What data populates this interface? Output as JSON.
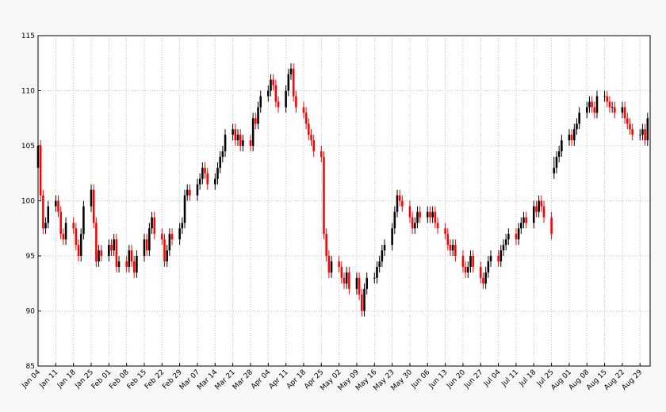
{
  "chart_data": {
    "type": "candlestick",
    "colorup": "#000000",
    "colordown": "#ff0000",
    "grid": true,
    "xlim": [
      0,
      242
    ],
    "ylim": [
      85,
      115
    ],
    "yticks": [
      85,
      90,
      95,
      100,
      105,
      110,
      115
    ],
    "xticks": [
      {
        "value": 0,
        "label": "Jan 04"
      },
      {
        "value": 7,
        "label": "Jan 11"
      },
      {
        "value": 14,
        "label": "Jan 18"
      },
      {
        "value": 21,
        "label": "Jan 25"
      },
      {
        "value": 28,
        "label": "Feb 01"
      },
      {
        "value": 35,
        "label": "Feb 08"
      },
      {
        "value": 42,
        "label": "Feb 15"
      },
      {
        "value": 49,
        "label": "Feb 22"
      },
      {
        "value": 56,
        "label": "Feb 29"
      },
      {
        "value": 63,
        "label": "Mar 07"
      },
      {
        "value": 70,
        "label": "Mar 14"
      },
      {
        "value": 77,
        "label": "Mar 21"
      },
      {
        "value": 84,
        "label": "Mar 28"
      },
      {
        "value": 91,
        "label": "Apr 04"
      },
      {
        "value": 98,
        "label": "Apr 11"
      },
      {
        "value": 105,
        "label": "Apr 18"
      },
      {
        "value": 112,
        "label": "Apr 25"
      },
      {
        "value": 119,
        "label": "May 02"
      },
      {
        "value": 126,
        "label": "May 09"
      },
      {
        "value": 133,
        "label": "May 16"
      },
      {
        "value": 140,
        "label": "May 23"
      },
      {
        "value": 147,
        "label": "May 30"
      },
      {
        "value": 154,
        "label": "Jun 06"
      },
      {
        "value": 161,
        "label": "Jun 13"
      },
      {
        "value": 168,
        "label": "Jun 20"
      },
      {
        "value": 175,
        "label": "Jun 27"
      },
      {
        "value": 182,
        "label": "Jul 04"
      },
      {
        "value": 189,
        "label": "Jul 11"
      },
      {
        "value": 196,
        "label": "Jul 18"
      },
      {
        "value": 203,
        "label": "Jul 25"
      },
      {
        "value": 210,
        "label": "Aug 01"
      },
      {
        "value": 217,
        "label": "Aug 08"
      },
      {
        "value": 224,
        "label": "Aug 15"
      },
      {
        "value": 231,
        "label": "Aug 22"
      },
      {
        "value": 238,
        "label": "Aug 29"
      }
    ],
    "x": [
      0,
      1,
      2,
      3,
      4,
      7,
      8,
      9,
      10,
      11,
      14,
      15,
      16,
      17,
      18,
      21,
      22,
      23,
      24,
      25,
      28,
      29,
      30,
      31,
      32,
      35,
      36,
      37,
      38,
      39,
      42,
      43,
      44,
      45,
      46,
      49,
      50,
      51,
      52,
      53,
      56,
      57,
      58,
      59,
      60,
      63,
      64,
      65,
      66,
      67,
      70,
      71,
      72,
      73,
      74,
      77,
      78,
      79,
      80,
      81,
      84,
      85,
      86,
      87,
      88,
      91,
      92,
      93,
      94,
      95,
      98,
      99,
      100,
      101,
      102,
      105,
      106,
      107,
      108,
      109,
      112,
      113,
      114,
      115,
      116,
      119,
      120,
      121,
      122,
      123,
      126,
      127,
      128,
      129,
      130,
      133,
      134,
      135,
      136,
      137,
      140,
      141,
      142,
      143,
      144,
      147,
      148,
      149,
      150,
      151,
      154,
      155,
      156,
      157,
      158,
      161,
      162,
      163,
      164,
      165,
      168,
      169,
      170,
      171,
      172,
      175,
      176,
      177,
      178,
      179,
      182,
      183,
      184,
      185,
      186,
      189,
      190,
      191,
      192,
      193,
      196,
      197,
      198,
      199,
      200,
      203,
      204,
      205,
      206,
      207,
      210,
      211,
      212,
      213,
      214,
      217,
      218,
      219,
      220,
      221,
      224,
      225,
      226,
      227,
      228,
      231,
      232,
      233,
      234,
      235,
      238,
      239,
      240,
      241
    ],
    "open": [
      103,
      105,
      100.5,
      97.5,
      98,
      99.5,
      100,
      99,
      97,
      96.5,
      98,
      97.5,
      96,
      95,
      97,
      99.5,
      101,
      98,
      94.5,
      95.5,
      95,
      96,
      95.5,
      96.5,
      94,
      94.5,
      94,
      95.5,
      94.5,
      93.5,
      95,
      96.5,
      95.5,
      97.5,
      98.5,
      97,
      96.5,
      94.5,
      95.5,
      97,
      96.5,
      97.5,
      98,
      100.5,
      101,
      100.5,
      101.5,
      102,
      103,
      102.5,
      101.5,
      102,
      103,
      104,
      104.5,
      106,
      106.5,
      105.5,
      106,
      105,
      105.5,
      105,
      107.5,
      107,
      108.5,
      109.5,
      110,
      111,
      110.5,
      109,
      108.5,
      110,
      111.5,
      112,
      109.5,
      108.5,
      108,
      107,
      106,
      105.5,
      104.5,
      104,
      97,
      95,
      93.5,
      94.5,
      94,
      93,
      92.5,
      93.5,
      92,
      93,
      91.5,
      90,
      92,
      93,
      93,
      94,
      94.5,
      95.5,
      96,
      97.5,
      99,
      100.5,
      100,
      99.5,
      98.5,
      97.5,
      98,
      99,
      98.5,
      99,
      98.5,
      99,
      98,
      97.5,
      97,
      96,
      95.5,
      96,
      95,
      94,
      93.5,
      94,
      95,
      94,
      93,
      92.5,
      93.5,
      94.5,
      95,
      94.5,
      95.5,
      96,
      96.5,
      97,
      96.5,
      97.5,
      98,
      98.5,
      98,
      99.5,
      99,
      100,
      99.5,
      98.5,
      102.5,
      103,
      104,
      104.5,
      105.5,
      106,
      105.5,
      106.5,
      107,
      108,
      108.5,
      109,
      108.5,
      108,
      109.5,
      109.5,
      109,
      108.5,
      108.5,
      108,
      108.5,
      107.5,
      107,
      106.5,
      106,
      106,
      106.5,
      105.5
    ],
    "high": [
      105.5,
      105.5,
      101,
      98.5,
      100,
      100.5,
      100.5,
      99.5,
      97.5,
      98.5,
      98.5,
      98,
      96.5,
      97.5,
      100,
      101.5,
      101.5,
      98.5,
      96,
      96,
      96.5,
      96.5,
      97,
      97,
      95,
      95,
      96,
      96,
      95,
      95.5,
      97,
      97,
      98,
      99,
      99,
      97.5,
      97,
      96,
      97.5,
      97.5,
      98,
      98.5,
      101,
      101.5,
      101.5,
      102,
      102.5,
      103.5,
      103.5,
      103,
      102.5,
      103.5,
      104.5,
      105,
      106.5,
      107,
      107,
      106.5,
      106.5,
      106,
      106,
      108,
      108,
      109,
      110,
      110.5,
      111.5,
      111.5,
      111,
      109.5,
      110.5,
      112,
      112.5,
      112.5,
      110,
      109,
      108.5,
      107.5,
      106.5,
      106,
      105,
      104.5,
      97.5,
      95.5,
      95,
      95,
      94.5,
      93.5,
      94,
      94,
      93.5,
      93.5,
      92,
      92.5,
      93.5,
      93.5,
      94.5,
      95,
      96,
      96.5,
      98,
      99.5,
      101,
      101,
      100.5,
      100,
      99,
      98.5,
      99.5,
      99.5,
      99.5,
      99.5,
      99.5,
      99.5,
      98.5,
      98,
      97.5,
      96.5,
      96.5,
      96.5,
      95.5,
      94.5,
      94.5,
      95.5,
      95.5,
      94.5,
      93.5,
      94,
      95,
      95.5,
      95.5,
      96,
      96.5,
      97,
      97.5,
      97.5,
      98,
      98.5,
      99,
      99,
      100,
      100,
      100.5,
      100.5,
      100,
      99,
      104,
      104.5,
      105,
      106,
      106.5,
      106.5,
      107,
      107.5,
      108.5,
      109,
      109.5,
      109.5,
      109,
      110,
      110,
      110,
      109.5,
      109,
      109,
      109,
      109,
      108,
      107.5,
      107,
      106.5,
      107,
      107,
      108
    ],
    "low": [
      102.5,
      100,
      97,
      97,
      97.5,
      99,
      98.5,
      96.5,
      96,
      96,
      97,
      95.5,
      94.5,
      94.5,
      96.5,
      99,
      97.5,
      94,
      94,
      94.5,
      94.5,
      95,
      95,
      93.5,
      93.5,
      93.5,
      93.5,
      94,
      93,
      93,
      94.5,
      95,
      95,
      97,
      96.5,
      96,
      94,
      94,
      95,
      96,
      96,
      97,
      97.5,
      100,
      100,
      100,
      101,
      101.5,
      102,
      101,
      101,
      101.5,
      102.5,
      103.5,
      104,
      105.5,
      105,
      105,
      104.5,
      104.5,
      104.5,
      104.5,
      106.5,
      106.5,
      108,
      109,
      109.5,
      110,
      108.5,
      108,
      108,
      109.5,
      111,
      109,
      108,
      107.5,
      106.5,
      105.5,
      105,
      104,
      103.5,
      96.5,
      94.5,
      93,
      93,
      93.5,
      92.5,
      92,
      92,
      91.5,
      91.5,
      91,
      89.5,
      89.5,
      91.5,
      92.5,
      92.5,
      93.5,
      94,
      95,
      95.5,
      97,
      98.5,
      99.5,
      99,
      98,
      97,
      97,
      97.5,
      98,
      98,
      98,
      98,
      97.5,
      97,
      96.5,
      95.5,
      95,
      95,
      94.5,
      93.5,
      93,
      93,
      93.5,
      93.5,
      92.5,
      92,
      92,
      93,
      94,
      94,
      94,
      95,
      95.5,
      96,
      96,
      96,
      97,
      97.5,
      97.5,
      97.5,
      98.5,
      98.5,
      99,
      98,
      96.5,
      102,
      102.5,
      103.5,
      104,
      105,
      105,
      105,
      106,
      106.5,
      107.5,
      108,
      108,
      107.5,
      107.5,
      109,
      108.5,
      108,
      108,
      107.5,
      107.5,
      107,
      106.5,
      106,
      105.5,
      105.5,
      105.5,
      105,
      105
    ],
    "close": [
      105,
      100.5,
      97.5,
      98,
      99.5,
      100,
      99,
      97,
      96.5,
      98,
      97.5,
      96,
      95,
      97,
      99.5,
      101,
      98,
      94.5,
      95.5,
      95,
      96,
      95.5,
      96.5,
      94,
      94.5,
      94,
      95.5,
      94.5,
      93.5,
      95,
      96.5,
      95.5,
      97.5,
      98.5,
      97,
      96.5,
      94.5,
      95.5,
      97,
      96.5,
      97.5,
      98,
      100.5,
      101,
      100.5,
      101.5,
      102,
      103,
      102.5,
      101.5,
      102,
      103,
      104,
      104.5,
      106,
      106.5,
      105.5,
      106,
      105,
      105.5,
      105,
      107.5,
      107,
      108.5,
      109.5,
      110,
      111,
      110.5,
      109,
      108.5,
      110,
      111.5,
      112,
      109.5,
      108.5,
      108,
      107,
      106,
      105.5,
      104.5,
      104,
      97,
      95,
      93.5,
      94.5,
      94,
      93,
      92.5,
      93.5,
      92,
      93,
      91.5,
      90,
      92,
      93,
      93,
      94,
      94.5,
      95.5,
      96,
      97.5,
      99,
      100.5,
      100,
      99.5,
      98.5,
      97.5,
      98,
      99,
      98.5,
      99,
      98.5,
      99,
      98,
      97.5,
      97,
      96,
      95.5,
      96,
      95,
      94,
      93.5,
      94,
      95,
      94,
      93,
      92.5,
      93.5,
      94.5,
      95,
      94.5,
      95.5,
      96,
      96.5,
      97,
      96.5,
      97.5,
      98,
      98.5,
      98,
      99.5,
      99,
      100,
      99.5,
      98.5,
      97,
      103,
      104,
      104.5,
      105.5,
      106,
      105.5,
      106.5,
      107,
      108,
      108.5,
      109,
      108.5,
      108,
      109.5,
      109.5,
      109,
      108.5,
      108.5,
      108,
      108.5,
      107.5,
      107,
      106.5,
      106,
      106,
      106.5,
      105.5,
      107.5
    ]
  }
}
